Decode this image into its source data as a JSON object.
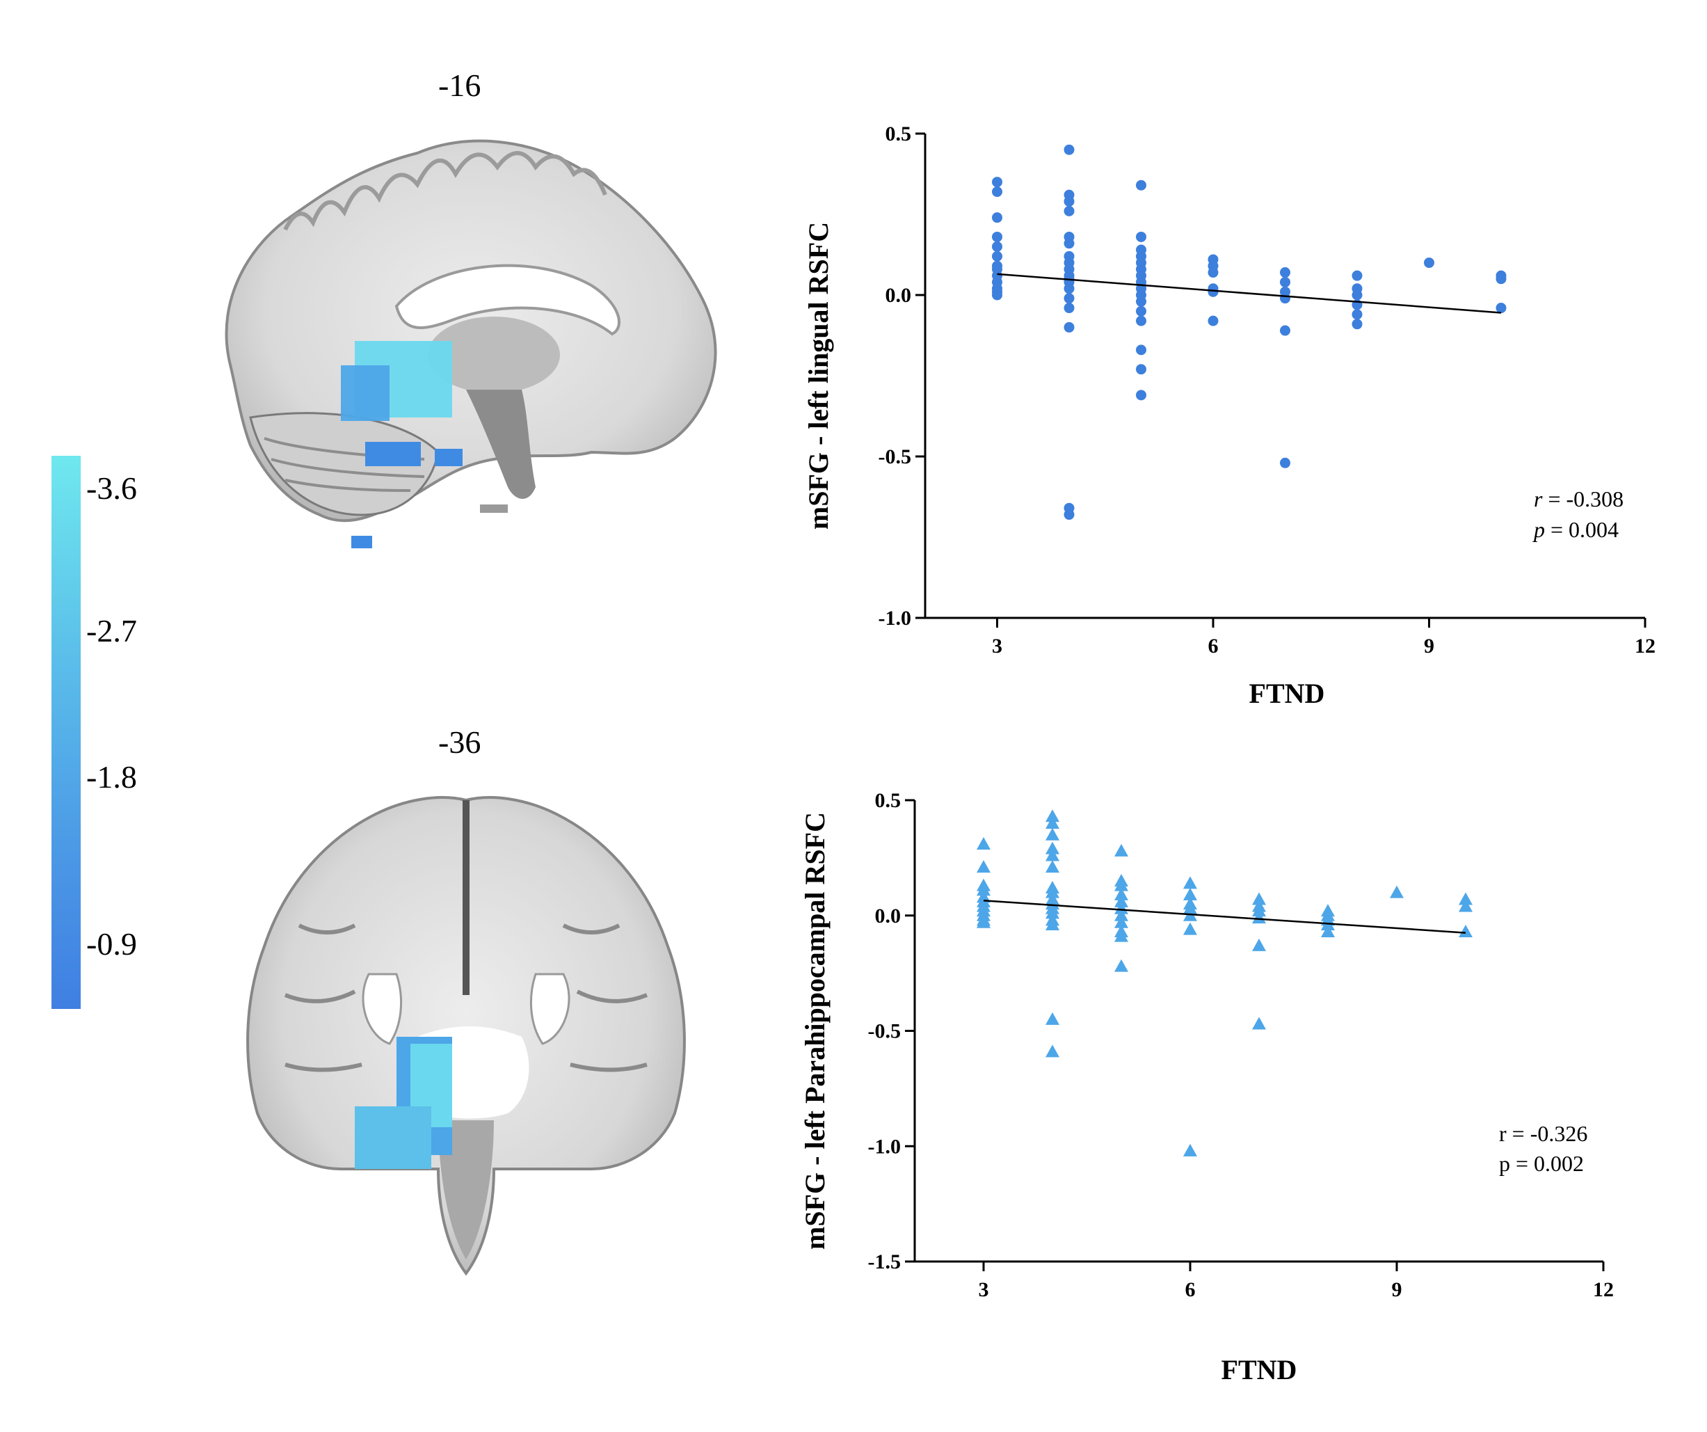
{
  "colors": {
    "panel_a_points": "#3d7fdc",
    "panel_b_points": "#4da6e8",
    "blob_light": "#6ad8ee",
    "blob_dark": "#3f8be4",
    "brain_gray": "#d2d2d2"
  },
  "slices": {
    "top": "-16",
    "bottom": "-36"
  },
  "colorbar": {
    "ticks": [
      "-3.6",
      "-2.7",
      "-1.8",
      "-0.9"
    ],
    "tick_values": [
      -3.6,
      -2.7,
      -1.8,
      -0.9
    ]
  },
  "chart_data": [
    {
      "type": "scatter",
      "marker": "circle",
      "xlabel": "FTND",
      "ylabel": "mSFG - left lingual RSFC",
      "xlim": [
        2,
        12
      ],
      "ylim": [
        -1.0,
        0.5
      ],
      "xticks": [
        3,
        6,
        9,
        12
      ],
      "yticks": [
        0.5,
        0.0,
        -0.5,
        -1.0
      ],
      "xtick_labels": [
        "3",
        "6",
        "9",
        "12"
      ],
      "ytick_labels": [
        "0.5",
        "0.0",
        "-0.5",
        "-1.0"
      ],
      "stats": {
        "r_label": "r",
        "r_value": " = -0.308",
        "p_label": "p",
        "p_value": " = 0.004"
      },
      "fit_line": {
        "x": [
          3,
          10
        ],
        "y": [
          0.065,
          -0.055
        ]
      },
      "points": [
        [
          3,
          0.35
        ],
        [
          3,
          0.32
        ],
        [
          3,
          0.24
        ],
        [
          3,
          0.18
        ],
        [
          3,
          0.15
        ],
        [
          3,
          0.12
        ],
        [
          3,
          0.09
        ],
        [
          3,
          0.08
        ],
        [
          3,
          0.06
        ],
        [
          3,
          0.04
        ],
        [
          3,
          0.02
        ],
        [
          3,
          0.01
        ],
        [
          3,
          0.0
        ],
        [
          4,
          0.45
        ],
        [
          4,
          0.31
        ],
        [
          4,
          0.29
        ],
        [
          4,
          0.26
        ],
        [
          4,
          0.18
        ],
        [
          4,
          0.16
        ],
        [
          4,
          0.12
        ],
        [
          4,
          0.1
        ],
        [
          4,
          0.08
        ],
        [
          4,
          0.06
        ],
        [
          4,
          0.05
        ],
        [
          4,
          0.04
        ],
        [
          4,
          0.02
        ],
        [
          4,
          -0.01
        ],
        [
          4,
          -0.04
        ],
        [
          4,
          -0.1
        ],
        [
          4,
          -0.66
        ],
        [
          4,
          -0.68
        ],
        [
          5,
          0.34
        ],
        [
          5,
          0.18
        ],
        [
          5,
          0.14
        ],
        [
          5,
          0.12
        ],
        [
          5,
          0.1
        ],
        [
          5,
          0.08
        ],
        [
          5,
          0.06
        ],
        [
          5,
          0.04
        ],
        [
          5,
          0.02
        ],
        [
          5,
          0.0
        ],
        [
          5,
          -0.02
        ],
        [
          5,
          -0.05
        ],
        [
          5,
          -0.08
        ],
        [
          5,
          -0.17
        ],
        [
          5,
          -0.23
        ],
        [
          5,
          -0.31
        ],
        [
          6,
          0.11
        ],
        [
          6,
          0.09
        ],
        [
          6,
          0.07
        ],
        [
          6,
          0.02
        ],
        [
          6,
          0.01
        ],
        [
          6,
          -0.08
        ],
        [
          7,
          0.07
        ],
        [
          7,
          0.04
        ],
        [
          7,
          0.01
        ],
        [
          7,
          -0.01
        ],
        [
          7,
          -0.11
        ],
        [
          7,
          -0.52
        ],
        [
          8,
          0.06
        ],
        [
          8,
          0.02
        ],
        [
          8,
          0.0
        ],
        [
          8,
          -0.03
        ],
        [
          8,
          -0.06
        ],
        [
          8,
          -0.09
        ],
        [
          9,
          0.1
        ],
        [
          10,
          0.06
        ],
        [
          10,
          0.05
        ],
        [
          10,
          -0.04
        ]
      ]
    },
    {
      "type": "scatter",
      "marker": "triangle",
      "xlabel": "FTND",
      "ylabel": "mSFG - left Parahippocampal RSFC",
      "xlim": [
        2,
        12
      ],
      "ylim": [
        -1.5,
        0.5
      ],
      "xticks": [
        3,
        6,
        9,
        12
      ],
      "yticks": [
        0.5,
        0.0,
        -0.5,
        -1.0,
        -1.5
      ],
      "xtick_labels": [
        "3",
        "6",
        "9",
        "12"
      ],
      "ytick_labels": [
        "0.5",
        "0.0",
        "-0.5",
        "-1.0",
        "-1.5"
      ],
      "stats": {
        "r_label": "r",
        "r_value": " = -0.326",
        "p_label": "p",
        "p_value": " = 0.002"
      },
      "fit_line": {
        "x": [
          3,
          10
        ],
        "y": [
          0.065,
          -0.075
        ]
      },
      "points": [
        [
          3,
          0.31
        ],
        [
          3,
          0.21
        ],
        [
          3,
          0.13
        ],
        [
          3,
          0.11
        ],
        [
          3,
          0.08
        ],
        [
          3,
          0.06
        ],
        [
          3,
          0.04
        ],
        [
          3,
          0.02
        ],
        [
          3,
          0.0
        ],
        [
          3,
          -0.02
        ],
        [
          3,
          -0.03
        ],
        [
          4,
          0.43
        ],
        [
          4,
          0.4
        ],
        [
          4,
          0.35
        ],
        [
          4,
          0.29
        ],
        [
          4,
          0.26
        ],
        [
          4,
          0.21
        ],
        [
          4,
          0.12
        ],
        [
          4,
          0.1
        ],
        [
          4,
          0.07
        ],
        [
          4,
          0.05
        ],
        [
          4,
          0.03
        ],
        [
          4,
          0.01
        ],
        [
          4,
          -0.02
        ],
        [
          4,
          -0.04
        ],
        [
          4,
          -0.45
        ],
        [
          4,
          -0.59
        ],
        [
          5,
          0.28
        ],
        [
          5,
          0.15
        ],
        [
          5,
          0.13
        ],
        [
          5,
          0.09
        ],
        [
          5,
          0.06
        ],
        [
          5,
          0.03
        ],
        [
          5,
          0.0
        ],
        [
          5,
          -0.03
        ],
        [
          5,
          -0.07
        ],
        [
          5,
          -0.09
        ],
        [
          5,
          -0.22
        ],
        [
          6,
          0.14
        ],
        [
          6,
          0.09
        ],
        [
          6,
          0.05
        ],
        [
          6,
          0.03
        ],
        [
          6,
          0.0
        ],
        [
          6,
          -0.06
        ],
        [
          6,
          -1.02
        ],
        [
          7,
          0.07
        ],
        [
          7,
          0.04
        ],
        [
          7,
          0.02
        ],
        [
          7,
          -0.01
        ],
        [
          7,
          -0.13
        ],
        [
          7,
          -0.47
        ],
        [
          8,
          0.02
        ],
        [
          8,
          0.0
        ],
        [
          8,
          -0.02
        ],
        [
          8,
          -0.04
        ],
        [
          8,
          -0.07
        ],
        [
          9,
          0.1
        ],
        [
          10,
          0.07
        ],
        [
          10,
          0.04
        ],
        [
          10,
          -0.07
        ]
      ]
    }
  ]
}
